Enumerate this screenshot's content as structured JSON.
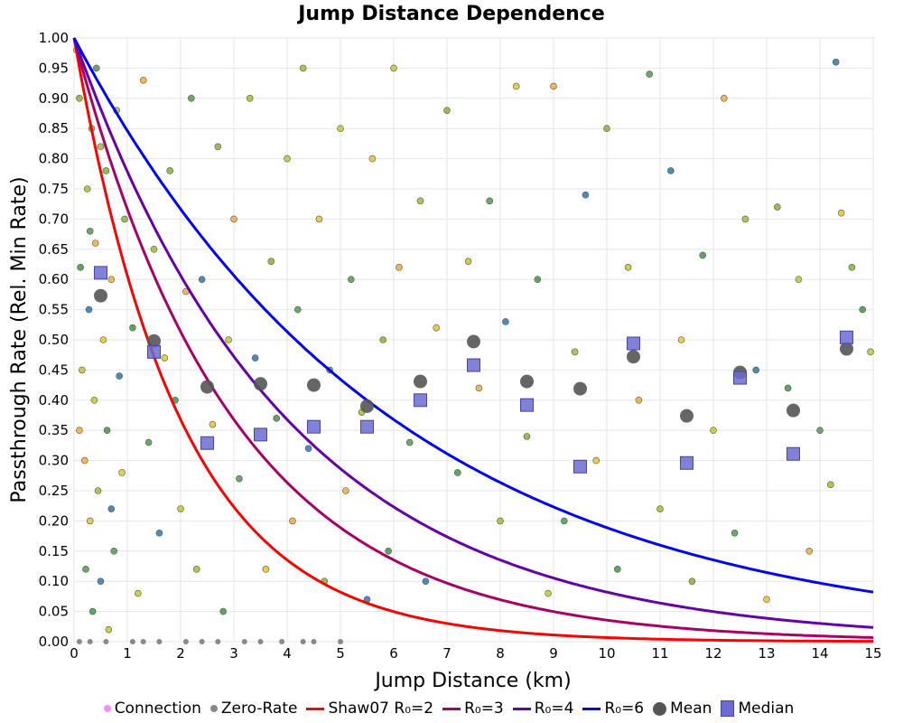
{
  "chart_data": {
    "type": "scatter",
    "title": "Jump Distance Dependence",
    "xlabel": "Jump Distance (km)",
    "ylabel": "Passthrough Rate (Rel. Min Rate)",
    "xlim": [
      0,
      15
    ],
    "ylim": [
      0,
      1
    ],
    "grid": true,
    "x_ticks": [
      "0",
      "1",
      "2",
      "3",
      "4",
      "5",
      "6",
      "7",
      "8",
      "9",
      "10",
      "11",
      "12",
      "13",
      "14",
      "15"
    ],
    "y_ticks": [
      "0.00",
      "0.05",
      "0.10",
      "0.15",
      "0.20",
      "0.25",
      "0.30",
      "0.35",
      "0.40",
      "0.45",
      "0.50",
      "0.55",
      "0.60",
      "0.65",
      "0.70",
      "0.75",
      "0.80",
      "0.85",
      "0.90",
      "0.95",
      "1.00"
    ],
    "legend_position": "bottom",
    "legend": [
      "Connection",
      "Zero-Rate",
      "Shaw07 R₀=2",
      "R₀=3",
      "R₀=4",
      "R₀=6",
      "Mean",
      "Median"
    ],
    "colors": {
      "connection": "#f58ef0",
      "zero_rate": "#888888",
      "r2": "#ff0000",
      "r3": "#aa0066",
      "r4": "#6600aa",
      "r6": "#0000ff",
      "mean": "#555555",
      "median": "#6b6bd0"
    },
    "curves": [
      {
        "name": "Shaw07 R₀=2",
        "r0": 2,
        "formula": "exp(-d/R0)"
      },
      {
        "name": "R₀=3",
        "r0": 3,
        "formula": "exp(-d/R0)"
      },
      {
        "name": "R₀=4",
        "r0": 4,
        "formula": "exp(-d/R0)"
      },
      {
        "name": "R₀=6",
        "r0": 6,
        "formula": "exp(-d/R0)"
      }
    ],
    "mean": {
      "x": [
        0.5,
        1.5,
        2.5,
        3.5,
        4.5,
        5.5,
        6.5,
        7.5,
        8.5,
        9.5,
        10.5,
        11.5,
        12.5,
        13.5,
        14.5
      ],
      "y": [
        0.573,
        0.498,
        0.422,
        0.427,
        0.425,
        0.39,
        0.431,
        0.497,
        0.431,
        0.419,
        0.472,
        0.374,
        0.446,
        0.383,
        0.485
      ]
    },
    "median": {
      "x": [
        0.5,
        1.5,
        2.5,
        3.5,
        4.5,
        5.5,
        6.5,
        7.5,
        8.5,
        9.5,
        10.5,
        11.5,
        12.5,
        13.5,
        14.5
      ],
      "y": [
        0.611,
        0.48,
        0.329,
        0.343,
        0.356,
        0.356,
        0.4,
        0.458,
        0.392,
        0.29,
        0.494,
        0.296,
        0.437,
        0.311,
        0.504
      ]
    },
    "connections": [
      [
        0.05,
        0.98
      ],
      [
        0.1,
        0.9
      ],
      [
        0.12,
        0.62
      ],
      [
        0.15,
        0.45
      ],
      [
        0.2,
        0.3
      ],
      [
        0.22,
        0.12
      ],
      [
        0.25,
        0.75
      ],
      [
        0.28,
        0.55
      ],
      [
        0.3,
        0.2
      ],
      [
        0.33,
        0.85
      ],
      [
        0.35,
        0.05
      ],
      [
        0.38,
        0.4
      ],
      [
        0.4,
        0.66
      ],
      [
        0.42,
        0.95
      ],
      [
        0.45,
        0.25
      ],
      [
        0.5,
        0.1
      ],
      [
        0.55,
        0.5
      ],
      [
        0.6,
        0.78
      ],
      [
        0.62,
        0.35
      ],
      [
        0.65,
        0.02
      ],
      [
        0.7,
        0.6
      ],
      [
        0.75,
        0.15
      ],
      [
        0.8,
        0.88
      ],
      [
        0.85,
        0.44
      ],
      [
        0.9,
        0.28
      ],
      [
        0.95,
        0.7
      ],
      [
        1.1,
        0.52
      ],
      [
        1.2,
        0.08
      ],
      [
        1.3,
        0.93
      ],
      [
        1.4,
        0.33
      ],
      [
        1.5,
        0.65
      ],
      [
        1.6,
        0.18
      ],
      [
        1.7,
        0.47
      ],
      [
        1.8,
        0.78
      ],
      [
        1.9,
        0.4
      ],
      [
        2.0,
        0.22
      ],
      [
        2.1,
        0.58
      ],
      [
        2.2,
        0.9
      ],
      [
        2.3,
        0.12
      ],
      [
        2.4,
        0.6
      ],
      [
        2.6,
        0.36
      ],
      [
        2.7,
        0.82
      ],
      [
        2.8,
        0.05
      ],
      [
        2.9,
        0.5
      ],
      [
        3.0,
        0.7
      ],
      [
        3.1,
        0.27
      ],
      [
        3.3,
        0.9
      ],
      [
        3.4,
        0.47
      ],
      [
        3.6,
        0.12
      ],
      [
        3.7,
        0.63
      ],
      [
        3.8,
        0.37
      ],
      [
        4.0,
        0.8
      ],
      [
        4.1,
        0.2
      ],
      [
        4.2,
        0.55
      ],
      [
        4.3,
        0.95
      ],
      [
        4.4,
        0.32
      ],
      [
        4.6,
        0.7
      ],
      [
        4.7,
        0.1
      ],
      [
        4.8,
        0.45
      ],
      [
        5.0,
        0.85
      ],
      [
        5.1,
        0.25
      ],
      [
        5.2,
        0.6
      ],
      [
        5.4,
        0.38
      ],
      [
        5.5,
        0.07
      ],
      [
        5.6,
        0.8
      ],
      [
        5.8,
        0.5
      ],
      [
        5.9,
        0.15
      ],
      [
        6.0,
        0.95
      ],
      [
        6.1,
        0.62
      ],
      [
        6.3,
        0.33
      ],
      [
        6.5,
        0.73
      ],
      [
        6.6,
        0.1
      ],
      [
        6.8,
        0.52
      ],
      [
        7.0,
        0.88
      ],
      [
        7.2,
        0.28
      ],
      [
        7.4,
        0.63
      ],
      [
        7.6,
        0.42
      ],
      [
        7.8,
        0.73
      ],
      [
        8.0,
        0.2
      ],
      [
        8.1,
        0.53
      ],
      [
        8.3,
        0.92
      ],
      [
        8.5,
        0.34
      ],
      [
        8.7,
        0.6
      ],
      [
        8.9,
        0.08
      ],
      [
        9.0,
        0.92
      ],
      [
        9.2,
        0.2
      ],
      [
        9.4,
        0.48
      ],
      [
        9.6,
        0.74
      ],
      [
        9.8,
        0.3
      ],
      [
        10.0,
        0.85
      ],
      [
        10.2,
        0.12
      ],
      [
        10.4,
        0.62
      ],
      [
        10.6,
        0.4
      ],
      [
        10.8,
        0.94
      ],
      [
        11.0,
        0.22
      ],
      [
        11.2,
        0.78
      ],
      [
        11.4,
        0.5
      ],
      [
        11.6,
        0.1
      ],
      [
        11.8,
        0.64
      ],
      [
        12.0,
        0.35
      ],
      [
        12.2,
        0.9
      ],
      [
        12.4,
        0.18
      ],
      [
        12.6,
        0.7
      ],
      [
        12.8,
        0.45
      ],
      [
        13.0,
        0.07
      ],
      [
        13.2,
        0.72
      ],
      [
        13.4,
        0.42
      ],
      [
        13.6,
        0.6
      ],
      [
        13.8,
        0.15
      ],
      [
        14.0,
        0.35
      ],
      [
        14.2,
        0.26
      ],
      [
        14.3,
        0.96
      ],
      [
        14.4,
        0.71
      ],
      [
        14.6,
        0.62
      ],
      [
        14.8,
        0.55
      ],
      [
        14.95,
        0.48
      ],
      [
        0.1,
        0.35
      ],
      [
        0.3,
        0.68
      ],
      [
        0.5,
        0.82
      ],
      [
        0.7,
        0.22
      ]
    ],
    "zero_rate": [
      [
        0.1,
        0
      ],
      [
        0.3,
        0
      ],
      [
        0.6,
        0
      ],
      [
        1.1,
        0
      ],
      [
        1.3,
        0
      ],
      [
        1.6,
        0
      ],
      [
        2.1,
        0
      ],
      [
        2.4,
        0
      ],
      [
        2.7,
        0
      ],
      [
        3.2,
        0
      ],
      [
        3.5,
        0
      ],
      [
        3.9,
        0
      ],
      [
        4.3,
        0
      ],
      [
        4.5,
        0
      ],
      [
        5.0,
        0
      ]
    ]
  }
}
